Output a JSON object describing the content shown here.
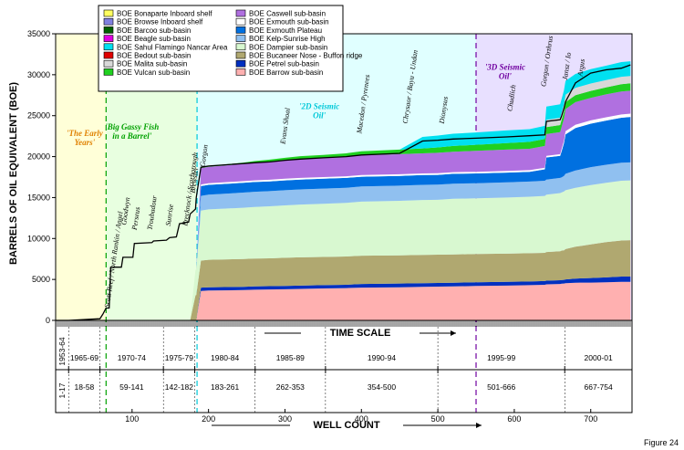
{
  "figure_label": "Figure 24",
  "chart_data": {
    "type": "area",
    "title": "",
    "ylabel": "BARRELS OF OIL EQUIVALENT (BOE)",
    "xlabel": "WELL COUNT",
    "ylim": [
      0,
      35000
    ],
    "xlim": [
      0,
      754
    ],
    "y_ticks": [
      0,
      5000,
      10000,
      15000,
      20000,
      25000,
      30000,
      35000
    ],
    "y_tick_labels": [
      "0",
      "5000",
      "10000",
      "15000",
      "20000",
      "25000",
      "30000",
      "35000"
    ],
    "x_ticks": [
      100,
      200,
      300,
      400,
      500,
      600,
      700
    ],
    "x_tick_labels": [
      "100",
      "200",
      "300",
      "400",
      "500",
      "600",
      "700"
    ],
    "time_scale_label": "TIME  SCALE",
    "legend_position": "top",
    "eras": [
      {
        "label": "'The Early Years'",
        "start": 0,
        "end": 66,
        "color": "#ffffd8",
        "text_color": "#e08000",
        "label_x": 38,
        "label_y": 22500
      },
      {
        "label": "'Big Gassy Fish in a Barrel'",
        "start": 66,
        "end": 185,
        "color": "#e8ffe0",
        "text_color": "#00a000",
        "label_x": 100,
        "label_y": 23300
      },
      {
        "label": "'2D Seismic Oil'",
        "start": 185,
        "end": 550,
        "color": "#e0ffff",
        "text_color": "#00c8d8",
        "label_x": 345,
        "label_y": 25800
      },
      {
        "label": "'3D Seismic Oil'",
        "start": 550,
        "end": 754,
        "color": "#e8e0ff",
        "text_color": "#7000a0",
        "label_x": 588,
        "label_y": 30600
      }
    ],
    "period_boundaries": [
      0,
      17,
      58,
      141,
      182,
      261,
      353,
      500,
      666,
      754
    ],
    "decades": [
      {
        "label": "1953-64",
        "start": 0,
        "end": 17
      },
      {
        "label": "1965-69",
        "start": 17,
        "end": 58
      },
      {
        "label": "1970-74",
        "start": 58,
        "end": 141
      },
      {
        "label": "1975-79",
        "start": 141,
        "end": 182
      },
      {
        "label": "1980-84",
        "start": 182,
        "end": 261
      },
      {
        "label": "1985-89",
        "start": 261,
        "end": 353
      },
      {
        "label": "1990-94",
        "start": 353,
        "end": 500
      },
      {
        "label": "1995-99",
        "start": 500,
        "end": 666
      },
      {
        "label": "2000-01",
        "start": 666,
        "end": 754
      }
    ],
    "well_ranges": [
      {
        "label": "1-17",
        "start": 0,
        "end": 17
      },
      {
        "label": "18-58",
        "start": 17,
        "end": 58
      },
      {
        "label": "59-141",
        "start": 58,
        "end": 141
      },
      {
        "label": "142-182",
        "start": 141,
        "end": 182
      },
      {
        "label": "183-261",
        "start": 182,
        "end": 261
      },
      {
        "label": "262-353",
        "start": 261,
        "end": 353
      },
      {
        "label": "354-500",
        "start": 353,
        "end": 500
      },
      {
        "label": "501-666",
        "start": 500,
        "end": 666
      },
      {
        "label": "667-754",
        "start": 666,
        "end": 754
      }
    ],
    "well_annotations": [
      {
        "label": "Scott Reef / North Rankin / Angel",
        "x": 70,
        "y": 1500
      },
      {
        "label": "Goodwyn",
        "x": 92,
        "y": 11600
      },
      {
        "label": "Perseus",
        "x": 106,
        "y": 11000
      },
      {
        "label": "Troubadour",
        "x": 126,
        "y": 11000
      },
      {
        "label": "Sunrise",
        "x": 150,
        "y": 11500
      },
      {
        "label": "Brecknock / Scarborough",
        "x": 172,
        "y": 11500
      },
      {
        "label": "Brewster",
        "x": 182,
        "y": 15500
      },
      {
        "label": "Gorgon",
        "x": 195,
        "y": 18700
      },
      {
        "label": "Evans Shoal",
        "x": 300,
        "y": 21500
      },
      {
        "label": "Macedon / Pyrenees",
        "x": 400,
        "y": 22800
      },
      {
        "label": "Chrysaor / Bayu - Undan",
        "x": 460,
        "y": 24000
      },
      {
        "label": "Dionysus",
        "x": 508,
        "y": 24000
      },
      {
        "label": "Chudlich",
        "x": 597,
        "y": 25500
      },
      {
        "label": "Gorgon / Orthrus",
        "x": 641,
        "y": 28500
      },
      {
        "label": "Jansz / Io",
        "x": 669,
        "y": 29300
      },
      {
        "label": "Argus",
        "x": 689,
        "y": 29800
      }
    ],
    "x": [
      0,
      17,
      58,
      60,
      62,
      66,
      70,
      72,
      86,
      88,
      101,
      103,
      126,
      128,
      145,
      149,
      158,
      162,
      174,
      176,
      183,
      184,
      190,
      200,
      245,
      260,
      280,
      300,
      320,
      350,
      380,
      400,
      450,
      480,
      500,
      520,
      550,
      590,
      620,
      640,
      642,
      660,
      662,
      665,
      667,
      680,
      700,
      720,
      740,
      752
    ],
    "series": [
      {
        "name": "BOE Barrow sub-basin",
        "color": "#ffb0b0",
        "values": [
          0,
          0,
          0,
          0,
          0,
          0,
          0,
          0,
          0,
          0,
          0,
          0,
          0,
          0,
          0,
          0,
          0,
          0,
          0,
          0,
          0,
          0,
          3600,
          3650,
          3700,
          3750,
          3780,
          3800,
          3850,
          3900,
          3950,
          4000,
          4050,
          4100,
          4120,
          4150,
          4200,
          4250,
          4300,
          4350,
          4400,
          4450,
          4480,
          4500,
          4550,
          4600,
          4620,
          4650,
          4700,
          4700
        ]
      },
      {
        "name": "BOE Petrel sub-basin",
        "color": "#0030c0",
        "values": [
          0,
          0,
          0,
          0,
          0,
          0,
          0,
          0,
          0,
          0,
          0,
          0,
          0,
          0,
          0,
          0,
          0,
          0,
          0,
          0,
          0,
          0,
          400,
          400,
          400,
          400,
          400,
          400,
          400,
          400,
          400,
          450,
          450,
          450,
          450,
          450,
          450,
          450,
          450,
          450,
          450,
          450,
          450,
          450,
          450,
          500,
          550,
          600,
          650,
          650
        ]
      },
      {
        "name": "BOE Bucaneer Nose - Buffon ridge",
        "color": "#b0a870",
        "values": [
          0,
          0,
          0,
          0,
          0,
          0,
          0,
          0,
          0,
          0,
          0,
          0,
          0,
          0,
          0,
          0,
          0,
          0,
          0,
          0,
          3100,
          3100,
          3300,
          3350,
          3400,
          3400,
          3400,
          3450,
          3450,
          3450,
          3450,
          3450,
          3450,
          3450,
          3450,
          3450,
          3450,
          3450,
          3450,
          3450,
          3500,
          3550,
          3600,
          3600,
          3700,
          3900,
          4100,
          4300,
          4400,
          4450
        ]
      },
      {
        "name": "BOE Dampier sub-basin",
        "color": "#d8f8d0",
        "values": [
          0,
          0,
          0,
          0,
          0,
          0,
          0,
          0,
          0,
          0,
          0,
          0,
          0,
          0,
          0,
          0,
          0,
          0,
          0,
          0,
          3100,
          3100,
          6100,
          6150,
          6250,
          6300,
          6350,
          6400,
          6450,
          6500,
          6550,
          6600,
          6650,
          6700,
          6700,
          6800,
          6800,
          6850,
          6900,
          6950,
          7000,
          7100,
          7100,
          7200,
          7200,
          7200,
          7250,
          7250,
          7300,
          7300
        ]
      },
      {
        "name": "BOE Kelp-Sunrise High",
        "color": "#90c0f0",
        "values": [
          0,
          0,
          0,
          0,
          0,
          0,
          0,
          0,
          0,
          0,
          0,
          0,
          0,
          0,
          0,
          0,
          0,
          0,
          0,
          0,
          0,
          0,
          1800,
          1800,
          1850,
          1850,
          1850,
          1850,
          1850,
          1850,
          1850,
          1850,
          1850,
          1850,
          1850,
          1850,
          1850,
          1850,
          1850,
          1850,
          1850,
          1850,
          1850,
          1900,
          2000,
          2100,
          2200,
          2200,
          2200,
          2200
        ]
      },
      {
        "name": "BOE Exmouth Plateau",
        "color": "#0070e0",
        "values": [
          0,
          0,
          0,
          0,
          0,
          0,
          0,
          0,
          0,
          0,
          0,
          0,
          0,
          0,
          0,
          0,
          0,
          0,
          0,
          0,
          0,
          0,
          1200,
          1200,
          1200,
          1200,
          1200,
          1200,
          1200,
          1200,
          1200,
          1200,
          1200,
          1200,
          1200,
          1200,
          1200,
          1200,
          1200,
          1400,
          2700,
          2700,
          3200,
          4000,
          4800,
          5200,
          5300,
          5400,
          5500,
          5550
        ]
      },
      {
        "name": "BOE Exmouth sub-basin",
        "color": "#ffffff",
        "values": [
          0,
          0,
          0,
          0,
          0,
          0,
          0,
          0,
          0,
          0,
          0,
          0,
          0,
          0,
          0,
          0,
          0,
          0,
          0,
          0,
          0,
          0,
          200,
          200,
          200,
          200,
          200,
          200,
          200,
          200,
          200,
          200,
          200,
          200,
          200,
          200,
          200,
          200,
          200,
          200,
          200,
          200,
          300,
          300,
          400,
          400,
          400,
          400,
          400,
          400
        ]
      },
      {
        "name": "BOE Caswell sub-basin",
        "color": "#b070e0",
        "values": [
          0,
          0,
          0,
          0,
          0,
          0,
          0,
          0,
          0,
          0,
          0,
          0,
          0,
          0,
          0,
          0,
          0,
          0,
          0,
          0,
          0,
          0,
          2000,
          2000,
          2100,
          2150,
          2200,
          2250,
          2300,
          2300,
          2350,
          2400,
          2450,
          2450,
          2500,
          2500,
          2550,
          2600,
          2600,
          2650,
          2650,
          2700,
          2700,
          2700,
          2700,
          2750,
          2750,
          2800,
          2800,
          2800
        ]
      },
      {
        "name": "BOE Vulcan sub-basin",
        "color": "#20d020",
        "values": [
          0,
          0,
          0,
          0,
          0,
          0,
          0,
          0,
          0,
          0,
          0,
          0,
          0,
          0,
          0,
          0,
          0,
          0,
          0,
          0,
          0,
          0,
          100,
          100,
          150,
          200,
          250,
          300,
          350,
          400,
          450,
          500,
          550,
          600,
          650,
          700,
          750,
          800,
          850,
          850,
          850,
          850,
          850,
          850,
          850,
          850,
          850,
          850,
          900,
          900
        ]
      },
      {
        "name": "BOE Malita sub-basin",
        "color": "#d8d8d8",
        "values": [
          0,
          0,
          0,
          0,
          0,
          0,
          0,
          0,
          0,
          0,
          0,
          0,
          0,
          0,
          0,
          0,
          0,
          0,
          0,
          0,
          0,
          0,
          0,
          0,
          0,
          0,
          0,
          0,
          0,
          0,
          0,
          0,
          0,
          0,
          0,
          0,
          0,
          0,
          0,
          0,
          900,
          900,
          900,
          900,
          900,
          900,
          900,
          900,
          900,
          900
        ]
      },
      {
        "name": "BOE Bedout sub-basin",
        "color": "#e00000",
        "values": [
          0,
          0,
          0,
          0,
          0,
          0,
          0,
          0,
          0,
          0,
          0,
          0,
          0,
          0,
          0,
          0,
          0,
          0,
          0,
          0,
          0,
          0,
          0,
          0,
          0,
          0,
          0,
          0,
          0,
          0,
          0,
          0,
          0,
          0,
          0,
          0,
          0,
          0,
          0,
          0,
          0,
          0,
          0,
          0,
          0,
          0,
          0,
          0,
          0,
          0
        ]
      },
      {
        "name": "BOE Sahul Flamingo Nancar Area",
        "color": "#00e0f0",
        "values": [
          0,
          0,
          0,
          0,
          0,
          0,
          0,
          0,
          0,
          0,
          0,
          0,
          0,
          0,
          0,
          0,
          0,
          0,
          0,
          0,
          0,
          0,
          0,
          0,
          0,
          0,
          0,
          0,
          0,
          0,
          0,
          0,
          0,
          1400,
          1450,
          1500,
          1500,
          1550,
          1550,
          1600,
          1600,
          1650,
          1650,
          1700,
          1700,
          1700,
          1750,
          1750,
          1800,
          1800
        ]
      },
      {
        "name": "BOE Beagle sub-basin",
        "color": "#e000e0",
        "values": [
          0,
          0,
          0,
          0,
          0,
          0,
          0,
          0,
          0,
          0,
          0,
          0,
          0,
          0,
          0,
          0,
          0,
          0,
          0,
          0,
          0,
          0,
          0,
          0,
          0,
          0,
          0,
          0,
          0,
          0,
          0,
          0,
          0,
          0,
          0,
          0,
          0,
          0,
          0,
          0,
          0,
          0,
          0,
          0,
          0,
          0,
          0,
          0,
          0,
          0
        ]
      },
      {
        "name": "BOE Barcoo sub-basin",
        "color": "#006000",
        "values": [
          0,
          0,
          0,
          0,
          0,
          0,
          0,
          0,
          0,
          0,
          0,
          0,
          0,
          0,
          0,
          0,
          0,
          0,
          0,
          0,
          0,
          0,
          0,
          0,
          0,
          0,
          0,
          0,
          0,
          0,
          0,
          0,
          0,
          0,
          0,
          0,
          0,
          0,
          0,
          0,
          0,
          0,
          0,
          0,
          0,
          0,
          0,
          0,
          0,
          0
        ]
      },
      {
        "name": "BOE Browse Inboard shelf",
        "color": "#8080e0",
        "values": [
          0,
          0,
          0,
          0,
          0,
          0,
          0,
          0,
          0,
          0,
          0,
          0,
          0,
          0,
          0,
          0,
          0,
          0,
          0,
          0,
          0,
          0,
          0,
          0,
          0,
          0,
          0,
          0,
          0,
          0,
          0,
          0,
          0,
          0,
          0,
          0,
          0,
          0,
          0,
          0,
          0,
          0,
          0,
          0,
          0,
          0,
          0,
          0,
          0,
          0
        ]
      },
      {
        "name": "BOE Bonaparte Inboard shelf",
        "color": "#ffff60",
        "values": [
          0,
          0,
          0,
          0,
          0,
          0,
          0,
          0,
          0,
          0,
          0,
          0,
          0,
          0,
          0,
          0,
          0,
          0,
          0,
          0,
          0,
          0,
          0,
          0,
          0,
          0,
          0,
          0,
          0,
          0,
          0,
          0,
          0,
          0,
          0,
          0,
          0,
          0,
          0,
          0,
          0,
          0,
          0,
          0,
          0,
          0,
          0,
          0,
          0,
          0
        ]
      }
    ],
    "total_line": [
      0,
      0,
      200,
      500,
      800,
      1500,
      1500,
      6500,
      6500,
      7700,
      7700,
      9400,
      9500,
      9700,
      9800,
      10100,
      10200,
      11800,
      12000,
      13000,
      13600,
      15000,
      18700,
      18850,
      19150,
      19250,
      19350,
      19550,
      19700,
      19850,
      20000,
      20200,
      20400,
      21900,
      22000,
      22150,
      22250,
      22400,
      22550,
      22650,
      24300,
      24500,
      25000,
      25900,
      26700,
      29000,
      30200,
      30600,
      30800,
      31200
    ]
  }
}
